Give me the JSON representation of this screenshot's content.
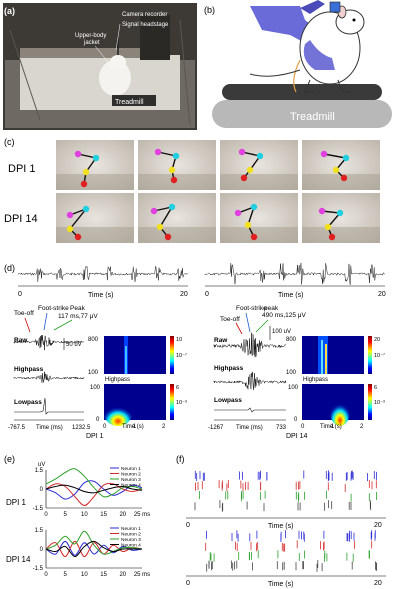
{
  "figure": {
    "panels": {
      "a": {
        "label": "(a)",
        "callouts": {
          "camera": "Camera recorder",
          "headstage": "Signal headstage",
          "jacket": "Upper-body jacket",
          "treadmill": "Treadmill"
        }
      },
      "b": {
        "label": "(b)",
        "treadmill": "Treadmill"
      },
      "c": {
        "label": "(c)",
        "row1": "DPI 1",
        "row2": "DPI 14"
      },
      "d": {
        "label": "(d)",
        "top_left_ticks": {
          "start": "0",
          "end": "20",
          "xlabel": "Time (s)"
        },
        "top_right_ticks": {
          "start": "0",
          "end": "20",
          "xlabel": "Time (s)"
        },
        "left": {
          "toe_off": "Toe-off",
          "foot_strike": "Foot-strike",
          "peak": "Peak",
          "peak_value": "117 ms,77 μV",
          "scale": "50 uV",
          "raw": "Raw",
          "highpass": "Highpass",
          "lowpass": "Lowpass",
          "x_min": "-767.5",
          "x_max": "1232.5",
          "x_label": "Time (ms)",
          "caption": "DPI 1",
          "spec_top": {
            "y_top": "800",
            "y_bottom": "100",
            "cb_top": "10",
            "cb_mid": "10⁻⁷",
            "xlabel": "Highpass"
          },
          "spec_bot": {
            "y_top": "100",
            "y_bottom": "0",
            "cb_top": "6",
            "cb_mid": "10⁻³",
            "x0": "0",
            "x1": "1",
            "x2": "2",
            "xlabel": "Time (s)"
          }
        },
        "right": {
          "toe_off": "Toe-off",
          "foot_strike": "Foot-strike",
          "peak": "peak",
          "peak_value": "490 ms,125 μV",
          "scale": "100 uV",
          "raw": "Raw",
          "highpass": "Highpass",
          "lowpass": "Lowpass",
          "x_min": "-1267",
          "x_max": "733",
          "x_label": "Time (ms)",
          "caption": "DPI 14",
          "spec_top": {
            "y_top": "800",
            "y_bottom": "100",
            "cb_top": "20",
            "cb_mid": "10⁻⁷",
            "xlabel": "Highpass"
          },
          "spec_bot": {
            "y_top": "100",
            "y_bottom": "0",
            "cb_top": "6",
            "cb_mid": "10⁻³",
            "x0": "0",
            "x1": "1",
            "x2": "2",
            "xlabel": "Time (s)"
          }
        }
      },
      "e": {
        "label": "(e)",
        "row1": "DPI 1",
        "row2": "DPI 14",
        "unit": "uV",
        "legend": [
          "Neuron 1",
          "Neuron 2",
          "Neuron 3",
          "Neuron 4"
        ],
        "colors": [
          "#2a2ad6",
          "#d62a2a",
          "#2aa02a",
          "#000000"
        ],
        "y_ticks_top": [
          "1.5",
          "0",
          "-1.5"
        ],
        "y_ticks_bottom": [
          "1.5",
          "0",
          "-1.5"
        ],
        "x_ticks": [
          "0",
          "5",
          "10",
          "15",
          "20",
          "25 ms"
        ]
      },
      "f": {
        "label": "(f)",
        "top": {
          "start": "0",
          "end": "20",
          "xlabel": "Time (s)"
        },
        "bottom": {
          "start": "0",
          "end": "20",
          "xlabel": "Time (s)"
        }
      }
    }
  },
  "chart_data": [
    {
      "type": "line",
      "title": "DPI 1",
      "xlabel": "",
      "ylabel": "uV",
      "x": [
        0,
        2.5,
        5,
        7.5,
        10,
        12.5,
        15,
        17.5,
        20,
        22.5,
        25
      ],
      "xlim": [
        0,
        25
      ],
      "ylim": [
        -1.5,
        1.5
      ],
      "series": [
        {
          "name": "Neuron 1",
          "values": [
            0,
            -0.3,
            -0.8,
            -0.4,
            0.5,
            0.6,
            0.0,
            -0.5,
            -0.2,
            0.3,
            0.1
          ]
        },
        {
          "name": "Neuron 2",
          "values": [
            0,
            0.4,
            0.2,
            -0.6,
            -1.3,
            -0.6,
            0.3,
            0.4,
            0.0,
            -0.2,
            0.0
          ]
        },
        {
          "name": "Neuron 3",
          "values": [
            0.4,
            0.8,
            1.3,
            1.6,
            1.0,
            0.1,
            -0.6,
            -0.4,
            0.1,
            0.2,
            0.0
          ]
        },
        {
          "name": "Neuron 4",
          "values": [
            0,
            0.2,
            0.3,
            0.1,
            -0.2,
            -0.3,
            -0.1,
            0.1,
            0.2,
            0.0,
            -0.1
          ]
        }
      ]
    },
    {
      "type": "line",
      "title": "DPI 14",
      "xlabel": "",
      "ylabel": "",
      "x": [
        0,
        2.5,
        5,
        7.5,
        10,
        12.5,
        15,
        17.5,
        20,
        22.5,
        25
      ],
      "xlim": [
        0,
        25
      ],
      "ylim": [
        -1.5,
        1.5
      ],
      "series": [
        {
          "name": "Neuron 1",
          "values": [
            0,
            -0.4,
            0.6,
            -0.5,
            0.5,
            -0.4,
            0.3,
            -0.3,
            0.2,
            -0.1,
            0
          ]
        },
        {
          "name": "Neuron 2",
          "values": [
            0,
            0.5,
            -0.6,
            0.6,
            -0.6,
            0.5,
            -0.4,
            0.3,
            -0.2,
            0.1,
            0
          ]
        },
        {
          "name": "Neuron 3",
          "values": [
            0,
            0.3,
            1.0,
            0.4,
            1.4,
            0.3,
            -0.4,
            -0.2,
            0.1,
            0.1,
            0
          ]
        },
        {
          "name": "Neuron 4",
          "values": [
            0,
            -0.2,
            0.2,
            -0.6,
            0.2,
            0.6,
            0.1,
            -0.2,
            0,
            0,
            0
          ]
        }
      ]
    }
  ]
}
